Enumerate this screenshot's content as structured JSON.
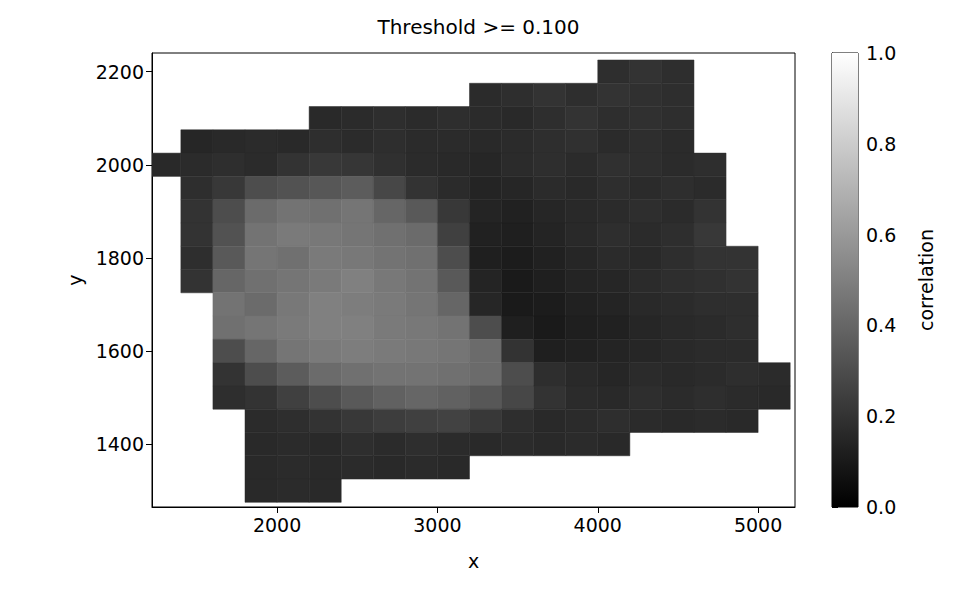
{
  "chart_data": {
    "type": "heatmap",
    "title": "Threshold >= 0.100",
    "x_label": "x",
    "y_label": "y",
    "x": [
      1300,
      1500,
      1700,
      1900,
      2100,
      2300,
      2500,
      2700,
      2900,
      3100,
      3300,
      3500,
      3700,
      3900,
      4100,
      4300,
      4500,
      4700,
      4900,
      5100
    ],
    "y": [
      2200,
      2150,
      2100,
      2050,
      2000,
      1950,
      1900,
      1850,
      1800,
      1750,
      1700,
      1650,
      1600,
      1550,
      1500,
      1450,
      1400,
      1350,
      1300
    ],
    "values": [
      [
        null,
        null,
        null,
        null,
        null,
        null,
        null,
        null,
        null,
        null,
        null,
        null,
        null,
        null,
        0.18,
        0.2,
        0.18,
        null,
        null,
        null
      ],
      [
        null,
        null,
        null,
        null,
        null,
        null,
        null,
        null,
        null,
        null,
        0.17,
        0.18,
        0.2,
        0.18,
        0.2,
        0.19,
        0.18,
        null,
        null,
        null
      ],
      [
        null,
        null,
        null,
        null,
        null,
        0.16,
        0.17,
        0.18,
        0.17,
        0.18,
        0.17,
        0.16,
        0.18,
        0.2,
        0.18,
        0.19,
        0.18,
        null,
        null,
        null
      ],
      [
        null,
        0.15,
        0.16,
        0.17,
        0.16,
        0.18,
        0.17,
        0.18,
        0.17,
        0.17,
        0.16,
        0.17,
        0.18,
        0.19,
        0.17,
        0.18,
        0.17,
        null,
        null,
        null
      ],
      [
        0.16,
        0.17,
        0.18,
        0.17,
        0.2,
        0.22,
        0.21,
        0.19,
        0.17,
        0.16,
        0.15,
        0.17,
        0.18,
        0.17,
        0.19,
        0.18,
        0.17,
        0.18,
        null,
        null
      ],
      [
        null,
        0.18,
        0.22,
        0.3,
        0.32,
        0.34,
        0.36,
        0.28,
        0.2,
        0.17,
        0.14,
        0.15,
        0.17,
        0.16,
        0.18,
        0.17,
        0.18,
        0.17,
        null,
        null
      ],
      [
        null,
        0.2,
        0.3,
        0.42,
        0.45,
        0.44,
        0.46,
        0.4,
        0.35,
        0.22,
        0.14,
        0.13,
        0.15,
        0.16,
        0.17,
        0.18,
        0.17,
        0.2,
        null,
        null
      ],
      [
        null,
        0.2,
        0.32,
        0.45,
        0.48,
        0.47,
        0.46,
        0.44,
        0.42,
        0.25,
        0.13,
        0.12,
        0.14,
        0.16,
        0.18,
        0.17,
        0.18,
        0.22,
        null,
        null
      ],
      [
        null,
        0.18,
        0.35,
        0.46,
        0.44,
        0.48,
        0.47,
        0.45,
        0.44,
        0.3,
        0.12,
        0.11,
        0.13,
        0.15,
        0.17,
        0.16,
        0.18,
        0.2,
        0.2,
        null
      ],
      [
        null,
        0.2,
        0.4,
        0.44,
        0.46,
        0.48,
        0.5,
        0.47,
        0.45,
        0.35,
        0.14,
        0.1,
        0.12,
        0.14,
        0.15,
        0.17,
        0.18,
        0.19,
        0.2,
        null
      ],
      [
        null,
        null,
        0.45,
        0.42,
        0.47,
        0.5,
        0.49,
        0.48,
        0.46,
        0.4,
        0.15,
        0.1,
        0.11,
        0.13,
        0.14,
        0.16,
        0.17,
        0.18,
        0.18,
        null
      ],
      [
        null,
        null,
        0.44,
        0.46,
        0.48,
        0.5,
        0.5,
        0.48,
        0.47,
        0.45,
        0.3,
        0.12,
        0.1,
        0.12,
        0.13,
        0.15,
        0.16,
        0.17,
        0.18,
        null
      ],
      [
        null,
        null,
        0.3,
        0.4,
        0.46,
        0.48,
        0.49,
        0.48,
        0.47,
        0.46,
        0.42,
        0.2,
        0.12,
        0.13,
        0.14,
        0.15,
        0.16,
        0.17,
        0.17,
        null
      ],
      [
        null,
        null,
        0.2,
        0.3,
        0.36,
        0.42,
        0.44,
        0.45,
        0.45,
        0.44,
        0.42,
        0.3,
        0.18,
        0.16,
        0.15,
        0.17,
        0.16,
        0.17,
        0.18,
        0.17
      ],
      [
        null,
        null,
        0.18,
        0.2,
        0.25,
        0.3,
        0.35,
        0.38,
        0.4,
        0.38,
        0.34,
        0.28,
        0.2,
        0.17,
        0.16,
        0.18,
        0.17,
        0.18,
        0.17,
        0.16
      ],
      [
        null,
        null,
        null,
        0.17,
        0.18,
        0.2,
        0.22,
        0.24,
        0.25,
        0.26,
        0.22,
        0.18,
        0.16,
        0.17,
        0.18,
        0.17,
        0.16,
        0.17,
        0.16,
        null
      ],
      [
        null,
        null,
        null,
        0.16,
        0.17,
        0.16,
        0.18,
        0.17,
        0.18,
        0.17,
        0.16,
        0.17,
        0.16,
        0.17,
        0.16,
        null,
        null,
        null,
        null,
        null
      ],
      [
        null,
        null,
        null,
        0.16,
        0.17,
        0.16,
        0.17,
        0.16,
        0.17,
        0.16,
        null,
        null,
        null,
        null,
        null,
        null,
        null,
        null,
        null,
        null
      ],
      [
        null,
        null,
        null,
        0.16,
        0.17,
        0.16,
        null,
        null,
        null,
        null,
        null,
        null,
        null,
        null,
        null,
        null,
        null,
        null,
        null,
        null
      ]
    ],
    "xlim": [
      1220,
      5230
    ],
    "xticks": [
      2000,
      3000,
      4000,
      5000
    ],
    "ylim": [
      1265,
      2240
    ],
    "yticks": [
      1400,
      1600,
      1800,
      2000,
      2200
    ],
    "color": "gray",
    "grid": false,
    "colorbar": {
      "label": "correlation",
      "range": [
        0,
        1
      ],
      "ticks": [
        {
          "value": 0,
          "label": "0.0"
        },
        {
          "value": 0.2,
          "label": "0.2"
        },
        {
          "value": 0.4,
          "label": "0.4"
        },
        {
          "value": 0.6,
          "label": "0.6"
        },
        {
          "value": 0.8,
          "label": "0.8"
        },
        {
          "value": 1,
          "label": "1.0"
        }
      ]
    }
  }
}
